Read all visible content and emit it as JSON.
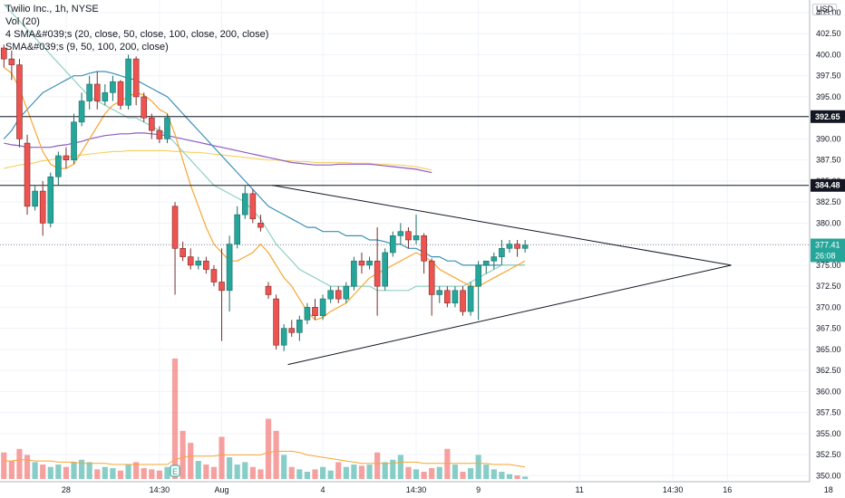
{
  "legend": {
    "symbol": "Twilio Inc., 1h, NYSE",
    "volume": "Vol (20)",
    "sma4": "4 SMA&#039;s (20, close, 50, close, 100, close, 200, close)",
    "sma": "SMA&#039;s (9, 50, 100, 200, close)"
  },
  "currency": "USD",
  "colors": {
    "up": "#26a69a",
    "down": "#ef5350",
    "text": "#131722",
    "sma_a": "#f7a531",
    "sma_b": "#8fd0c2",
    "sma_c": "#3d8fb6",
    "sma_d": "#8e5ac4",
    "sma_e": "#f6d365"
  },
  "chart_data": {
    "type": "candlestick",
    "y_ticks": [
      405,
      402.5,
      400,
      397.5,
      395,
      392.5,
      390,
      387.5,
      385,
      382.5,
      380,
      377.5,
      375,
      372.5,
      370,
      367.5,
      365,
      362.5,
      360,
      357.5,
      355,
      352.5,
      350
    ],
    "y_tick_labels": [
      "405.00",
      "402.50",
      "400.00",
      "397.50",
      "395.00",
      "392.50",
      "390.00",
      "387.50",
      "385.00",
      "382.50",
      "380.00",
      "377.50",
      "375.00",
      "372.50",
      "370.00",
      "367.50",
      "365.00",
      "362.50",
      "360.00",
      "357.50",
      "355.00",
      "352.50",
      "350.00"
    ],
    "ylim": [
      349.5,
      406.5
    ],
    "x_tick_labels": [
      {
        "label": "28",
        "bar": 8.5
      },
      {
        "label": "14:30",
        "bar": 20.5
      },
      {
        "label": "Aug",
        "bar": 28.5
      },
      {
        "label": "4",
        "bar": 41.5
      },
      {
        "label": "14:30",
        "bar": 53.5
      },
      {
        "label": "9",
        "bar": 61.5
      },
      {
        "label": "11",
        "bar": 74.5
      },
      {
        "label": "14:30",
        "bar": 86.5
      },
      {
        "label": "16",
        "bar": 93.5
      },
      {
        "label": "18",
        "bar": 106.5
      }
    ],
    "bar_count_span": 111,
    "candles": [
      [
        400.8,
        401.2,
        398.5,
        399.5
      ],
      [
        399.5,
        400.5,
        397.0,
        398.8
      ],
      [
        398.8,
        399.5,
        389.0,
        390.0
      ],
      [
        389.5,
        390.5,
        381.0,
        382.0
      ],
      [
        382.0,
        384.5,
        381.5,
        383.8
      ],
      [
        383.8,
        385.0,
        378.5,
        380.0
      ],
      [
        380.0,
        386.0,
        379.5,
        385.5
      ],
      [
        385.5,
        388.5,
        384.5,
        388.0
      ],
      [
        388.0,
        389.0,
        386.5,
        387.5
      ],
      [
        387.5,
        393.0,
        387.0,
        392.0
      ],
      [
        392.0,
        395.5,
        391.5,
        394.5
      ],
      [
        394.5,
        397.5,
        393.5,
        396.5
      ],
      [
        396.5,
        398.0,
        393.5,
        394.5
      ],
      [
        394.5,
        396.5,
        394.0,
        395.5
      ],
      [
        395.5,
        397.5,
        394.5,
        396.8
      ],
      [
        396.8,
        397.0,
        393.5,
        394.0
      ],
      [
        394.0,
        400.0,
        393.5,
        399.5
      ],
      [
        399.5,
        399.8,
        394.0,
        395.0
      ],
      [
        395.0,
        395.5,
        392.0,
        392.5
      ],
      [
        392.5,
        393.0,
        390.0,
        391.0
      ],
      [
        391.0,
        391.5,
        389.5,
        390.0
      ],
      [
        390.0,
        393.0,
        389.5,
        392.5
      ],
      [
        382.0,
        382.5,
        371.5,
        377.0
      ],
      [
        377.0,
        377.8,
        375.5,
        376.0
      ],
      [
        376.0,
        377.0,
        374.5,
        375.0
      ],
      [
        375.0,
        376.0,
        374.5,
        375.5
      ],
      [
        375.5,
        376.0,
        374.0,
        374.5
      ],
      [
        374.5,
        375.0,
        372.5,
        373.0
      ],
      [
        373.0,
        377.0,
        366.0,
        372.0
      ],
      [
        372.0,
        378.5,
        369.5,
        377.5
      ],
      [
        377.5,
        382.0,
        377.0,
        381.0
      ],
      [
        381.0,
        384.5,
        380.5,
        383.5
      ],
      [
        383.5,
        384.0,
        380.0,
        380.5
      ],
      [
        380.0,
        381.0,
        379.0,
        379.5
      ],
      [
        372.5,
        373.0,
        371.0,
        371.5
      ],
      [
        371.0,
        371.5,
        365.0,
        365.5
      ],
      [
        365.5,
        368.0,
        364.8,
        367.5
      ],
      [
        367.5,
        368.5,
        366.5,
        367.0
      ],
      [
        367.0,
        369.0,
        366.0,
        368.5
      ],
      [
        368.5,
        370.5,
        368.0,
        370.0
      ],
      [
        370.0,
        371.0,
        368.5,
        369.0
      ],
      [
        369.0,
        371.5,
        368.5,
        371.0
      ],
      [
        371.0,
        372.5,
        370.5,
        372.0
      ],
      [
        372.0,
        372.5,
        370.5,
        371.0
      ],
      [
        371.0,
        373.0,
        370.5,
        372.5
      ],
      [
        372.5,
        376.0,
        372.0,
        375.5
      ],
      [
        375.5,
        376.5,
        374.0,
        375.0
      ],
      [
        375.0,
        376.0,
        374.5,
        375.5
      ],
      [
        375.5,
        379.5,
        369.0,
        372.5
      ],
      [
        372.5,
        377.0,
        372.0,
        376.5
      ],
      [
        376.5,
        379.0,
        376.0,
        378.5
      ],
      [
        378.5,
        380.0,
        377.5,
        379.0
      ],
      [
        379.0,
        379.5,
        377.0,
        378.0
      ],
      [
        378.0,
        381.0,
        377.5,
        378.5
      ],
      [
        378.5,
        378.8,
        374.0,
        375.5
      ],
      [
        375.5,
        375.8,
        369.0,
        371.5
      ],
      [
        371.5,
        372.5,
        370.5,
        372.0
      ],
      [
        372.0,
        372.5,
        370.0,
        370.5
      ],
      [
        370.5,
        372.5,
        370.0,
        372.0
      ],
      [
        372.0,
        372.5,
        369.0,
        369.5
      ],
      [
        369.5,
        373.0,
        369.0,
        372.5
      ],
      [
        372.5,
        375.5,
        368.5,
        375.0
      ],
      [
        375.0,
        375.5,
        374.0,
        375.5
      ],
      [
        375.5,
        376.5,
        374.5,
        376.0
      ],
      [
        376.0,
        378.0,
        375.0,
        377.0
      ],
      [
        377.0,
        378.0,
        376.5,
        377.5
      ],
      [
        377.5,
        378.0,
        376.0,
        377.0
      ],
      [
        377.0,
        378.0,
        376.5,
        377.4
      ]
    ],
    "volume": {
      "max": 100,
      "values": [
        22,
        15,
        25,
        20,
        14,
        12,
        10,
        12,
        10,
        14,
        16,
        14,
        8,
        10,
        9,
        7,
        12,
        14,
        9,
        8,
        7,
        10,
        100,
        40,
        30,
        15,
        12,
        10,
        35,
        18,
        12,
        14,
        10,
        8,
        50,
        40,
        20,
        10,
        8,
        6,
        8,
        10,
        7,
        14,
        10,
        12,
        11,
        12,
        22,
        14,
        16,
        20,
        10,
        8,
        6,
        9,
        10,
        25,
        12,
        6,
        9,
        20,
        12,
        8,
        6,
        4,
        3,
        2
      ],
      "sma_values": [
        15,
        15,
        16,
        16,
        15,
        15,
        15,
        14,
        14,
        14,
        13,
        13,
        13,
        13,
        12,
        12,
        12,
        12,
        12,
        12,
        12,
        12,
        16,
        18,
        19,
        19,
        19,
        19,
        20,
        20,
        20,
        20,
        20,
        20,
        22,
        23,
        23,
        23,
        22,
        20,
        19,
        18,
        17,
        16,
        15,
        14,
        13,
        13,
        13,
        13,
        13,
        14,
        14,
        14,
        13,
        13,
        13,
        13,
        13,
        13,
        13,
        13,
        13,
        12,
        12,
        12,
        11,
        10
      ]
    },
    "sma_fast": [
      398.5,
      397.8,
      396.0,
      393.5,
      391.0,
      388.5,
      387.0,
      386.5,
      386.5,
      387.0,
      388.5,
      390.0,
      391.5,
      393.0,
      394.0,
      394.5,
      395.0,
      395.5,
      395.2,
      394.5,
      393.5,
      393.0,
      390.5,
      387.5,
      384.5,
      382.0,
      379.5,
      377.5,
      376.5,
      375.5,
      375.5,
      376.0,
      376.5,
      377.5,
      376.5,
      375.0,
      373.5,
      372.5,
      371.0,
      369.5,
      368.5,
      368.8,
      369.5,
      370.0,
      370.5,
      371.5,
      372.5,
      373.5,
      374.0,
      374.5,
      375.0,
      375.5,
      376.0,
      376.5,
      376.0,
      375.5,
      374.5,
      374.0,
      373.5,
      373.0,
      372.5,
      372.5,
      373.0,
      373.5,
      374.0,
      374.5,
      375.0,
      375.5
    ],
    "sma_b": [
      406.0,
      405.0,
      404.0,
      403.0,
      402.0,
      401.0,
      400.0,
      399.0,
      398.0,
      397.0,
      396.0,
      395.0,
      394.5,
      394.0,
      393.5,
      393.0,
      392.5,
      392.5,
      392.0,
      391.5,
      391.0,
      390.5,
      389.5,
      388.5,
      387.5,
      386.5,
      385.5,
      384.5,
      384.0,
      383.5,
      383.0,
      382.5,
      381.5,
      380.5,
      379.0,
      377.5,
      376.5,
      375.5,
      374.5,
      374.0,
      373.5,
      373.0,
      372.5,
      372.5,
      372.5,
      372.5,
      372.5,
      372.5,
      372.0,
      372.0,
      372.0,
      372.0,
      372.0,
      372.5,
      372.5,
      372.5,
      372.5,
      372.5,
      372.5,
      372.5,
      373.0,
      373.5,
      374.0,
      374.5,
      375.0,
      375.0,
      375.0,
      375.0
    ],
    "sma_c": [
      390.0,
      391.0,
      392.5,
      393.5,
      394.5,
      395.5,
      396.0,
      396.5,
      397.0,
      397.5,
      397.5,
      397.8,
      398.0,
      398.0,
      397.8,
      397.5,
      397.2,
      397.0,
      396.5,
      396.0,
      395.5,
      395.0,
      394.0,
      393.0,
      392.0,
      391.0,
      390.0,
      389.0,
      388.0,
      387.0,
      386.0,
      385.0,
      384.0,
      383.0,
      382.0,
      381.5,
      381.0,
      380.5,
      380.0,
      379.5,
      379.5,
      379.0,
      379.0,
      379.0,
      378.5,
      378.5,
      378.5,
      378.0,
      378.0,
      377.8,
      377.5,
      377.5,
      377.0,
      377.0,
      376.5,
      376.0,
      376.0,
      375.5,
      375.5,
      375.0,
      375.0,
      375.0,
      375.0,
      375.0,
      375.0,
      375.0,
      375.0,
      375.0
    ],
    "sma_d": [
      389.5,
      389.3,
      389.2,
      389.0,
      389.0,
      389.0,
      389.0,
      389.2,
      389.3,
      389.5,
      389.7,
      390.0,
      390.2,
      390.4,
      390.5,
      390.6,
      390.6,
      390.7,
      390.7,
      390.6,
      390.5,
      390.4,
      390.2,
      390.0,
      389.8,
      389.6,
      389.4,
      389.2,
      389.0,
      388.8,
      388.6,
      388.4,
      388.2,
      388.0,
      387.8,
      387.6,
      387.4,
      387.2,
      387.1,
      387.0,
      386.9,
      386.9,
      386.9,
      387.0,
      387.0,
      387.0,
      387.0,
      387.0,
      386.9,
      386.8,
      386.7,
      386.6,
      386.5,
      386.4,
      386.2,
      386.0
    ],
    "sma_e": [
      386.5,
      386.7,
      386.9,
      387.0,
      387.2,
      387.4,
      387.5,
      387.7,
      387.8,
      388.0,
      388.1,
      388.2,
      388.3,
      388.4,
      388.5,
      388.5,
      388.6,
      388.6,
      388.6,
      388.6,
      388.6,
      388.6,
      388.5,
      388.5,
      388.4,
      388.4,
      388.3,
      388.2,
      388.1,
      388.0,
      387.9,
      387.8,
      387.7,
      387.6,
      387.5,
      387.5,
      387.4,
      387.4,
      387.3,
      387.3,
      387.2,
      387.2,
      387.2,
      387.2,
      387.2,
      387.1,
      387.1,
      387.1,
      387.0,
      387.0,
      386.9,
      386.9,
      386.8,
      386.7,
      386.5,
      386.3
    ],
    "h_lines": [
      {
        "value": 392.65,
        "label": "392.65"
      },
      {
        "value": 384.48,
        "label": "384.48"
      }
    ],
    "last_price": {
      "value": 377.41,
      "label": "377.41",
      "countdown": "26:08"
    },
    "triangle": {
      "upper": [
        [
          35,
          384.5
        ],
        [
          94,
          375.0
        ]
      ],
      "lower": [
        [
          37,
          363.2
        ],
        [
          94,
          375.0
        ]
      ]
    }
  }
}
